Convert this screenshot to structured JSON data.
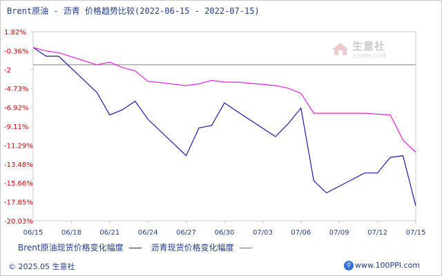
{
  "header": {
    "title": "Brent原油 - 沥青 价格趋势比较(2022-06-15 - 2022-07-15)"
  },
  "watermark": {
    "text": "生意社",
    "sub": "100PPI.COM"
  },
  "footer": {
    "copyright": "© 2025.05 生意社",
    "site": "www.100PPI.com"
  },
  "colors": {
    "brent": "#1a1aaa",
    "asphalt": "#e020e0",
    "axis": "#c8c8c8",
    "tick_text": "#cc0000",
    "label_text": "#1f3b8f",
    "baseline": "#808080"
  },
  "chart_data": {
    "type": "line",
    "title": "Brent原油 - 沥青 价格趋势比较(2022-06-15 - 2022-07-15)",
    "xlabel": "",
    "ylabel": "",
    "x_tick_labels": [
      "06/15",
      "06/18",
      "06/21",
      "06/24",
      "06/27",
      "06/30",
      "07/03",
      "07/06",
      "07/09",
      "07/12",
      "07/15"
    ],
    "y_tick_labels": [
      "1.82%",
      "-0.36%",
      "-2",
      "-4.73%",
      "-6.92%",
      "-9.11%",
      "-11.29%",
      "-13.48%",
      "-15.66%",
      "-17.85%",
      "-20.03%"
    ],
    "ylim": [
      -20.03,
      1.82
    ],
    "baseline": -2,
    "x": [
      "06/15",
      "06/16",
      "06/17",
      "06/20",
      "06/21",
      "06/22",
      "06/23",
      "06/24",
      "06/27",
      "06/28",
      "06/29",
      "06/30",
      "07/01",
      "07/04",
      "07/05",
      "07/06",
      "07/07",
      "07/08",
      "07/11",
      "07/12",
      "07/13",
      "07/14",
      "07/15"
    ],
    "x_index": [
      0,
      1,
      2,
      5,
      6,
      7,
      8,
      9,
      12,
      13,
      14,
      15,
      16,
      19,
      20,
      21,
      22,
      23,
      26,
      27,
      28,
      29,
      30
    ],
    "series": [
      {
        "name": "Brent原油现货价格变化幅度",
        "color": "#1a1aaa",
        "values": [
          0,
          -1.0,
          -1.0,
          -5.2,
          -7.8,
          -7.2,
          -6.2,
          -8.3,
          -12.5,
          -9.3,
          -9.0,
          -6.4,
          -7.4,
          -10.3,
          -8.8,
          -7.0,
          -15.4,
          -16.8,
          -14.5,
          -14.5,
          -12.7,
          -12.5,
          -18.3
        ]
      },
      {
        "name": "沥青现货价格变化幅度",
        "color": "#e020e0",
        "values": [
          0,
          -0.4,
          -0.6,
          -2.0,
          -1.7,
          -2.3,
          -2.7,
          -3.9,
          -4.4,
          -4.2,
          -3.8,
          -4.0,
          -4.0,
          -4.4,
          -4.7,
          -5.3,
          -7.6,
          -7.6,
          -7.6,
          -7.7,
          -7.8,
          -10.7,
          -12.1
        ]
      }
    ],
    "legend_position": "bottom",
    "grid": false
  }
}
